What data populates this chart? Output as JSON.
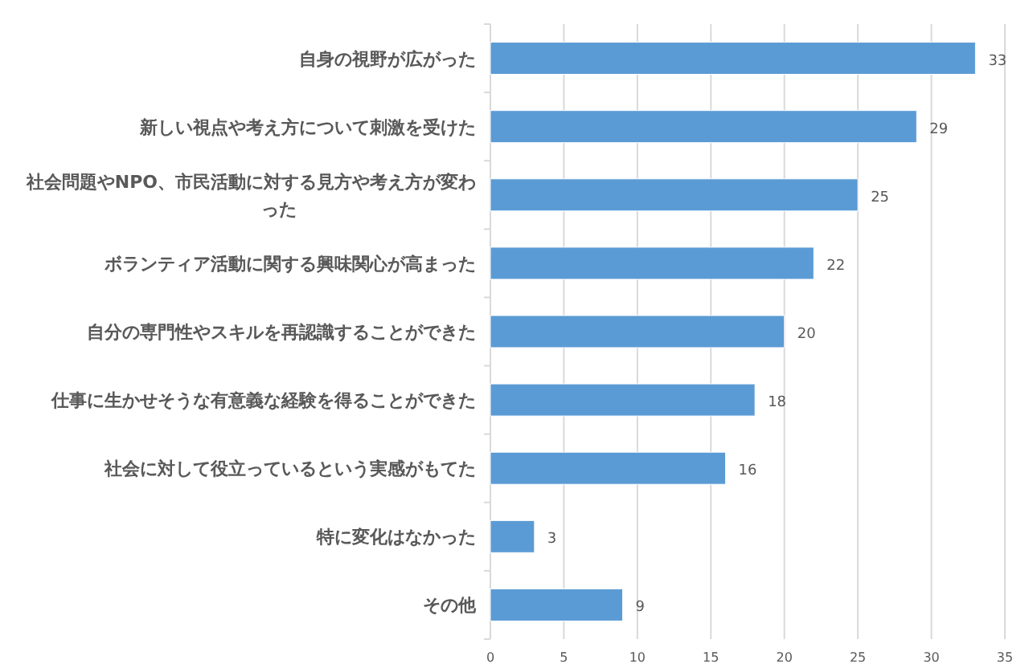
{
  "chart_data": {
    "type": "bar",
    "orientation": "horizontal",
    "categories": [
      "自身の視野が広がった",
      "新しい視点や考え方について刺激を受けた",
      "社会問題やNPO、市民活動に対する見方や考え方が変わった",
      "ボランティア活動に関する興味関心が高まった",
      "自分の専門性やスキルを再認識することができた",
      "仕事に生かせそうな有意義な経験を得ることができた",
      "社会に対して役立っているという実感がもてた",
      "特に変化はなかった",
      "その他"
    ],
    "values": [
      33,
      29,
      25,
      22,
      20,
      18,
      16,
      3,
      9
    ],
    "color": "#5b9bd5",
    "xlim": [
      0,
      35
    ],
    "xticks": [
      0,
      5,
      10,
      15,
      20,
      25,
      30,
      35
    ],
    "grid": "x",
    "data_labels": true
  }
}
